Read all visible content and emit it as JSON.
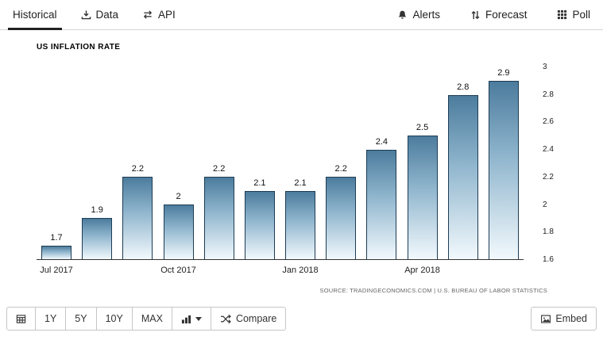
{
  "nav": {
    "tabs": [
      {
        "label": "Historical",
        "active": true
      },
      {
        "label": "Data",
        "icon": "download-icon"
      },
      {
        "label": "API",
        "icon": "exchange-arrows-icon"
      }
    ],
    "actions": [
      {
        "label": "Alerts",
        "icon": "bell-icon"
      },
      {
        "label": "Forecast",
        "icon": "up-down-arrows-icon"
      },
      {
        "label": "Poll",
        "icon": "grid-icon"
      }
    ]
  },
  "chart_data": {
    "type": "bar",
    "title": "US INFLATION RATE",
    "categories": [
      "Jul 2017",
      "",
      "",
      "Oct 2017",
      "",
      "",
      "Jan 2018",
      "",
      "",
      "Apr 2018",
      "",
      ""
    ],
    "values": [
      1.7,
      1.9,
      2.2,
      2,
      2.2,
      2.1,
      2.1,
      2.2,
      2.4,
      2.5,
      2.8,
      2.9
    ],
    "ylim": [
      1.6,
      3
    ],
    "yticks": [
      1.6,
      1.8,
      2,
      2.2,
      2.4,
      2.6,
      2.8,
      3
    ],
    "grid": false,
    "legend_position": "none",
    "bar_style": {
      "gradient_top": "#4c7c9d",
      "gradient_bottom": "#f2f9fd",
      "border": "#1d3c55"
    },
    "source": "SOURCE: TRADINGECONOMICS.COM | U.S. BUREAU OF LABOR STATISTICS"
  },
  "toolbar": {
    "calendar_icon": "calendar-icon",
    "ranges": [
      "1Y",
      "5Y",
      "10Y",
      "MAX"
    ],
    "chart_type_icon": "bar-chart-icon",
    "compare": {
      "label": "Compare",
      "icon": "compare-shuffle-icon"
    },
    "embed": {
      "label": "Embed",
      "icon": "image-icon"
    }
  }
}
